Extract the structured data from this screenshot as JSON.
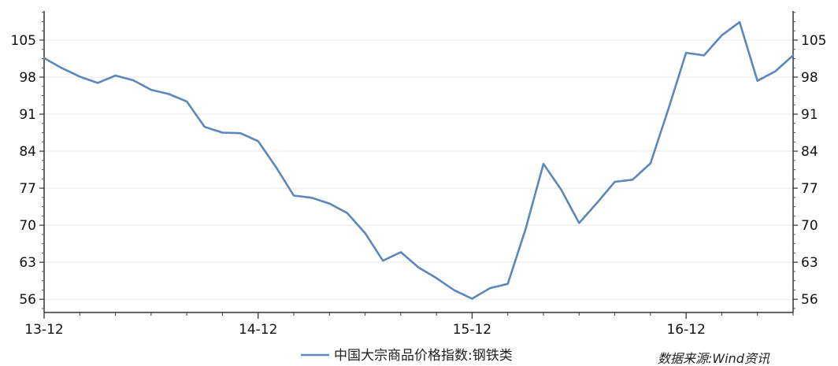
{
  "chart_data": {
    "type": "line",
    "x_ticks": [
      "13-12",
      "14-12",
      "15-12",
      "16-12"
    ],
    "y_ticks": [
      56,
      63,
      70,
      77,
      84,
      91,
      98,
      105
    ],
    "ylim": [
      53.5,
      110.5
    ],
    "grid": true,
    "legend_position": "bottom-center",
    "source": "数据来源:Wind资讯",
    "series": [
      {
        "name": "中国大宗商品价格指数:钢铁类",
        "color": "#5b87bb",
        "x": [
          "2013-12",
          "2014-01",
          "2014-02",
          "2014-03",
          "2014-04",
          "2014-05",
          "2014-06",
          "2014-07",
          "2014-08",
          "2014-09",
          "2014-10",
          "2014-11",
          "2014-12",
          "2015-01",
          "2015-02",
          "2015-03",
          "2015-04",
          "2015-05",
          "2015-06",
          "2015-07",
          "2015-08",
          "2015-09",
          "2015-10",
          "2015-11",
          "2015-12",
          "2016-01",
          "2016-02",
          "2016-03",
          "2016-04",
          "2016-05",
          "2016-06",
          "2016-07",
          "2016-08",
          "2016-09",
          "2016-10",
          "2016-11",
          "2016-12",
          "2017-01",
          "2017-02",
          "2017-03",
          "2017-04",
          "2017-05",
          "2017-06"
        ],
        "values": [
          101.6,
          99.7,
          98.1,
          96.9,
          98.3,
          97.4,
          95.6,
          94.8,
          93.4,
          88.6,
          87.5,
          87.4,
          85.9,
          81.0,
          75.6,
          75.2,
          74.1,
          72.3,
          68.5,
          63.3,
          64.9,
          62.0,
          60.0,
          57.7,
          56.1,
          58.1,
          58.9,
          69.3,
          81.6,
          76.7,
          70.4,
          74.2,
          78.2,
          78.6,
          81.7,
          91.9,
          102.6,
          102.1,
          105.9,
          108.4,
          97.3,
          99.1,
          102.1
        ]
      }
    ]
  }
}
